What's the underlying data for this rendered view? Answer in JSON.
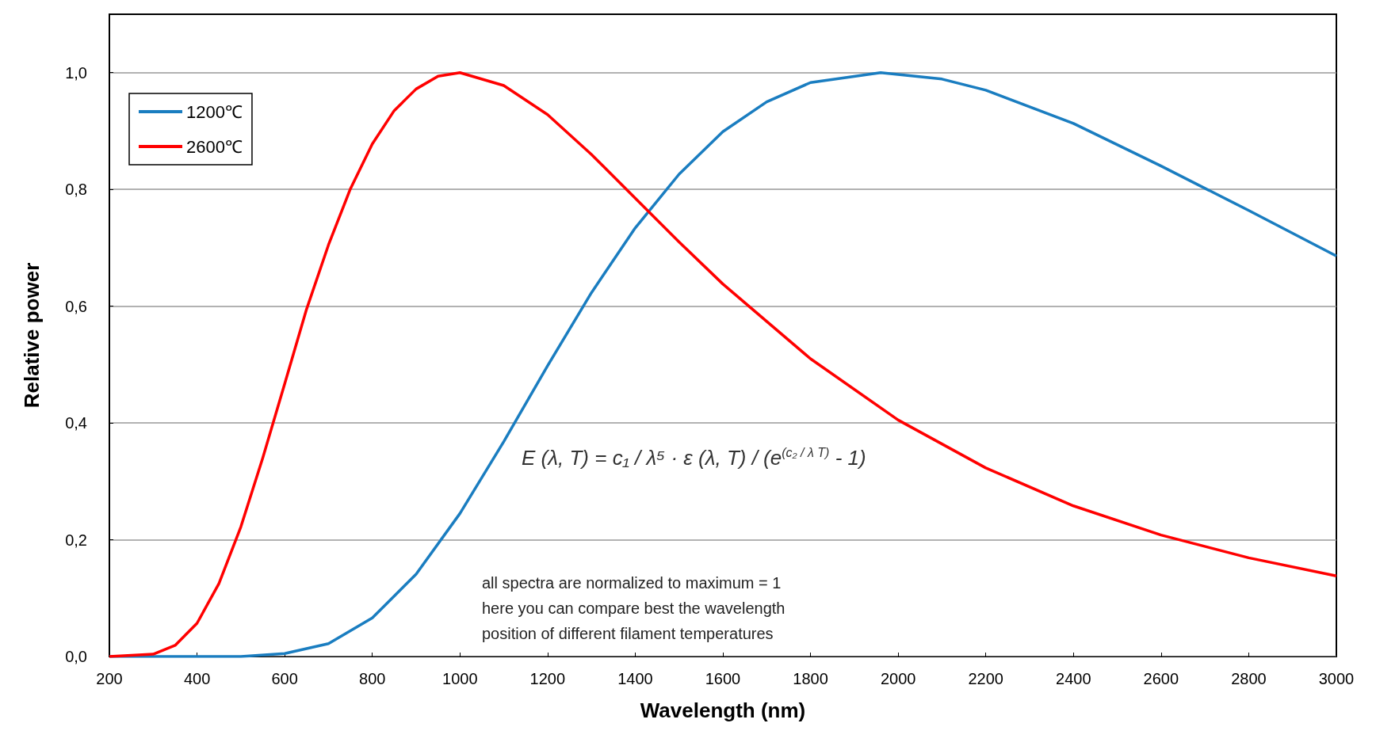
{
  "chart_data": {
    "type": "line",
    "xlabel": "Wavelength (nm)",
    "ylabel": "Relative power",
    "series": [
      {
        "name": "1200℃",
        "color": "#1a7dc0",
        "x": [
          200,
          300,
          500,
          600,
          700,
          800,
          900,
          1000,
          1100,
          1200,
          1300,
          1400,
          1500,
          1600,
          1700,
          1800,
          1960,
          2100,
          2200,
          2400,
          2600,
          2800,
          3000
        ],
        "values": [
          0,
          0,
          0,
          0.005,
          0.022,
          0.066,
          0.141,
          0.245,
          0.368,
          0.498,
          0.623,
          0.734,
          0.826,
          0.899,
          0.95,
          0.983,
          1,
          0.989,
          0.97,
          0.913,
          0.84,
          0.764,
          0.686
        ]
      },
      {
        "name": "2600℃",
        "color": "#ff0000",
        "x": [
          200,
          300,
          350,
          400,
          450,
          500,
          550,
          600,
          650,
          700,
          750,
          800,
          850,
          900,
          950,
          1000,
          1100,
          1200,
          1300,
          1400,
          1500,
          1600,
          1800,
          2000,
          2200,
          2400,
          2600,
          2800,
          3000
        ],
        "values": [
          0,
          0.004,
          0.019,
          0.057,
          0.125,
          0.222,
          0.34,
          0.467,
          0.595,
          0.705,
          0.801,
          0.878,
          0.935,
          0.972,
          0.994,
          1,
          0.978,
          0.928,
          0.86,
          0.785,
          0.71,
          0.638,
          0.51,
          0.405,
          0.323,
          0.258,
          0.208,
          0.169,
          0.138
        ]
      }
    ],
    "xlim": [
      200,
      3000
    ],
    "xticks": [
      200,
      400,
      600,
      800,
      1000,
      1200,
      1400,
      1600,
      1800,
      2000,
      2200,
      2400,
      2600,
      2800,
      3000
    ],
    "ylim": [
      0,
      1.1
    ],
    "yticks": [
      {
        "value": 0,
        "label": "0,0"
      },
      {
        "value": 0.2,
        "label": "0,2"
      },
      {
        "value": 0.4,
        "label": "0,4"
      },
      {
        "value": 0.6,
        "label": "0,6"
      },
      {
        "value": 0.8,
        "label": "0,8"
      },
      {
        "value": 1.0,
        "label": "1,0"
      }
    ],
    "grid": "y",
    "legend": "top left",
    "marker": "none",
    "line_style": "solid",
    "annotations": [
      "E (λ, T) = c₁ / λ⁵ · ε (λ, T) / (e$^{(c₂ / λ T)}$ - 1)",
      "all spectra are normalized to maximum = 1\nhere you can compare best the wavelength\nposition of different filament temperatures"
    ]
  }
}
